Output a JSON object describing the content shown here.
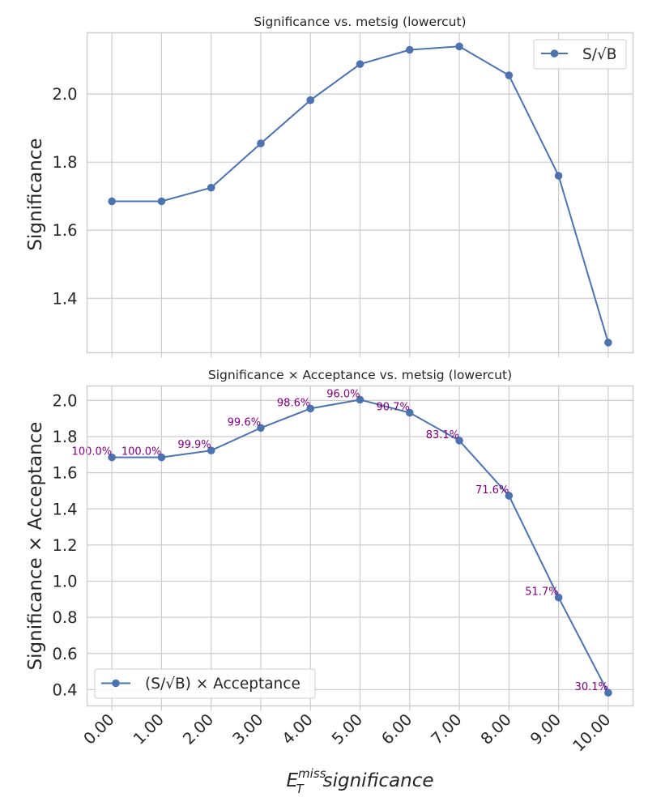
{
  "chart_data": [
    {
      "type": "line",
      "title": "Significance vs. metsig (lowercut)",
      "xlabel": "",
      "ylabel": "Significance",
      "x": [
        0,
        1,
        2,
        3,
        4,
        5,
        6,
        7,
        8,
        9,
        10
      ],
      "xlim": [
        -0.5,
        10.5
      ],
      "ylim": [
        1.24,
        2.18
      ],
      "yticks": [
        1.4,
        1.6,
        1.8,
        2.0
      ],
      "ytick_labels": [
        "1.4",
        "1.6",
        "1.8",
        "2.0"
      ],
      "grid": true,
      "legend_position": "upper right",
      "series": [
        {
          "name": "S/√B",
          "color": "#4c72b0",
          "marker": "circle",
          "values": [
            1.685,
            1.685,
            1.725,
            1.855,
            1.982,
            2.088,
            2.13,
            2.14,
            2.055,
            1.76,
            1.27
          ]
        }
      ]
    },
    {
      "type": "line",
      "title": "Significance × Acceptance vs. metsig (lowercut)",
      "xlabel": "significance",
      "xlabel_base": "E",
      "xlabel_sub": "T",
      "xlabel_sup": "miss",
      "ylabel": "Significance × Acceptance",
      "x": [
        0,
        1,
        2,
        3,
        4,
        5,
        6,
        7,
        8,
        9,
        10
      ],
      "xlim": [
        -0.5,
        10.5
      ],
      "ylim": [
        0.31,
        2.08
      ],
      "xtick_labels": [
        "0.00",
        "1.00",
        "2.00",
        "3.00",
        "4.00",
        "5.00",
        "6.00",
        "7.00",
        "8.00",
        "9.00",
        "10.00"
      ],
      "yticks": [
        0.4,
        0.6,
        0.8,
        1.0,
        1.2,
        1.4,
        1.6,
        1.8,
        2.0
      ],
      "ytick_labels": [
        "0.4",
        "0.6",
        "0.8",
        "1.0",
        "1.2",
        "1.4",
        "1.6",
        "1.8",
        "2.0"
      ],
      "grid": true,
      "legend_position": "lower left",
      "series": [
        {
          "name": "(S/√B) × Acceptance",
          "color": "#4c72b0",
          "marker": "circle",
          "values": [
            1.685,
            1.685,
            1.723,
            1.848,
            1.955,
            2.004,
            1.932,
            1.778,
            1.473,
            0.91,
            0.383
          ]
        }
      ],
      "annotations": {
        "color": "#800080",
        "labels": [
          "100.0%",
          "100.0%",
          "99.9%",
          "99.6%",
          "98.6%",
          "96.0%",
          "90.7%",
          "83.1%",
          "71.6%",
          "51.7%",
          "30.1%"
        ]
      }
    }
  ]
}
